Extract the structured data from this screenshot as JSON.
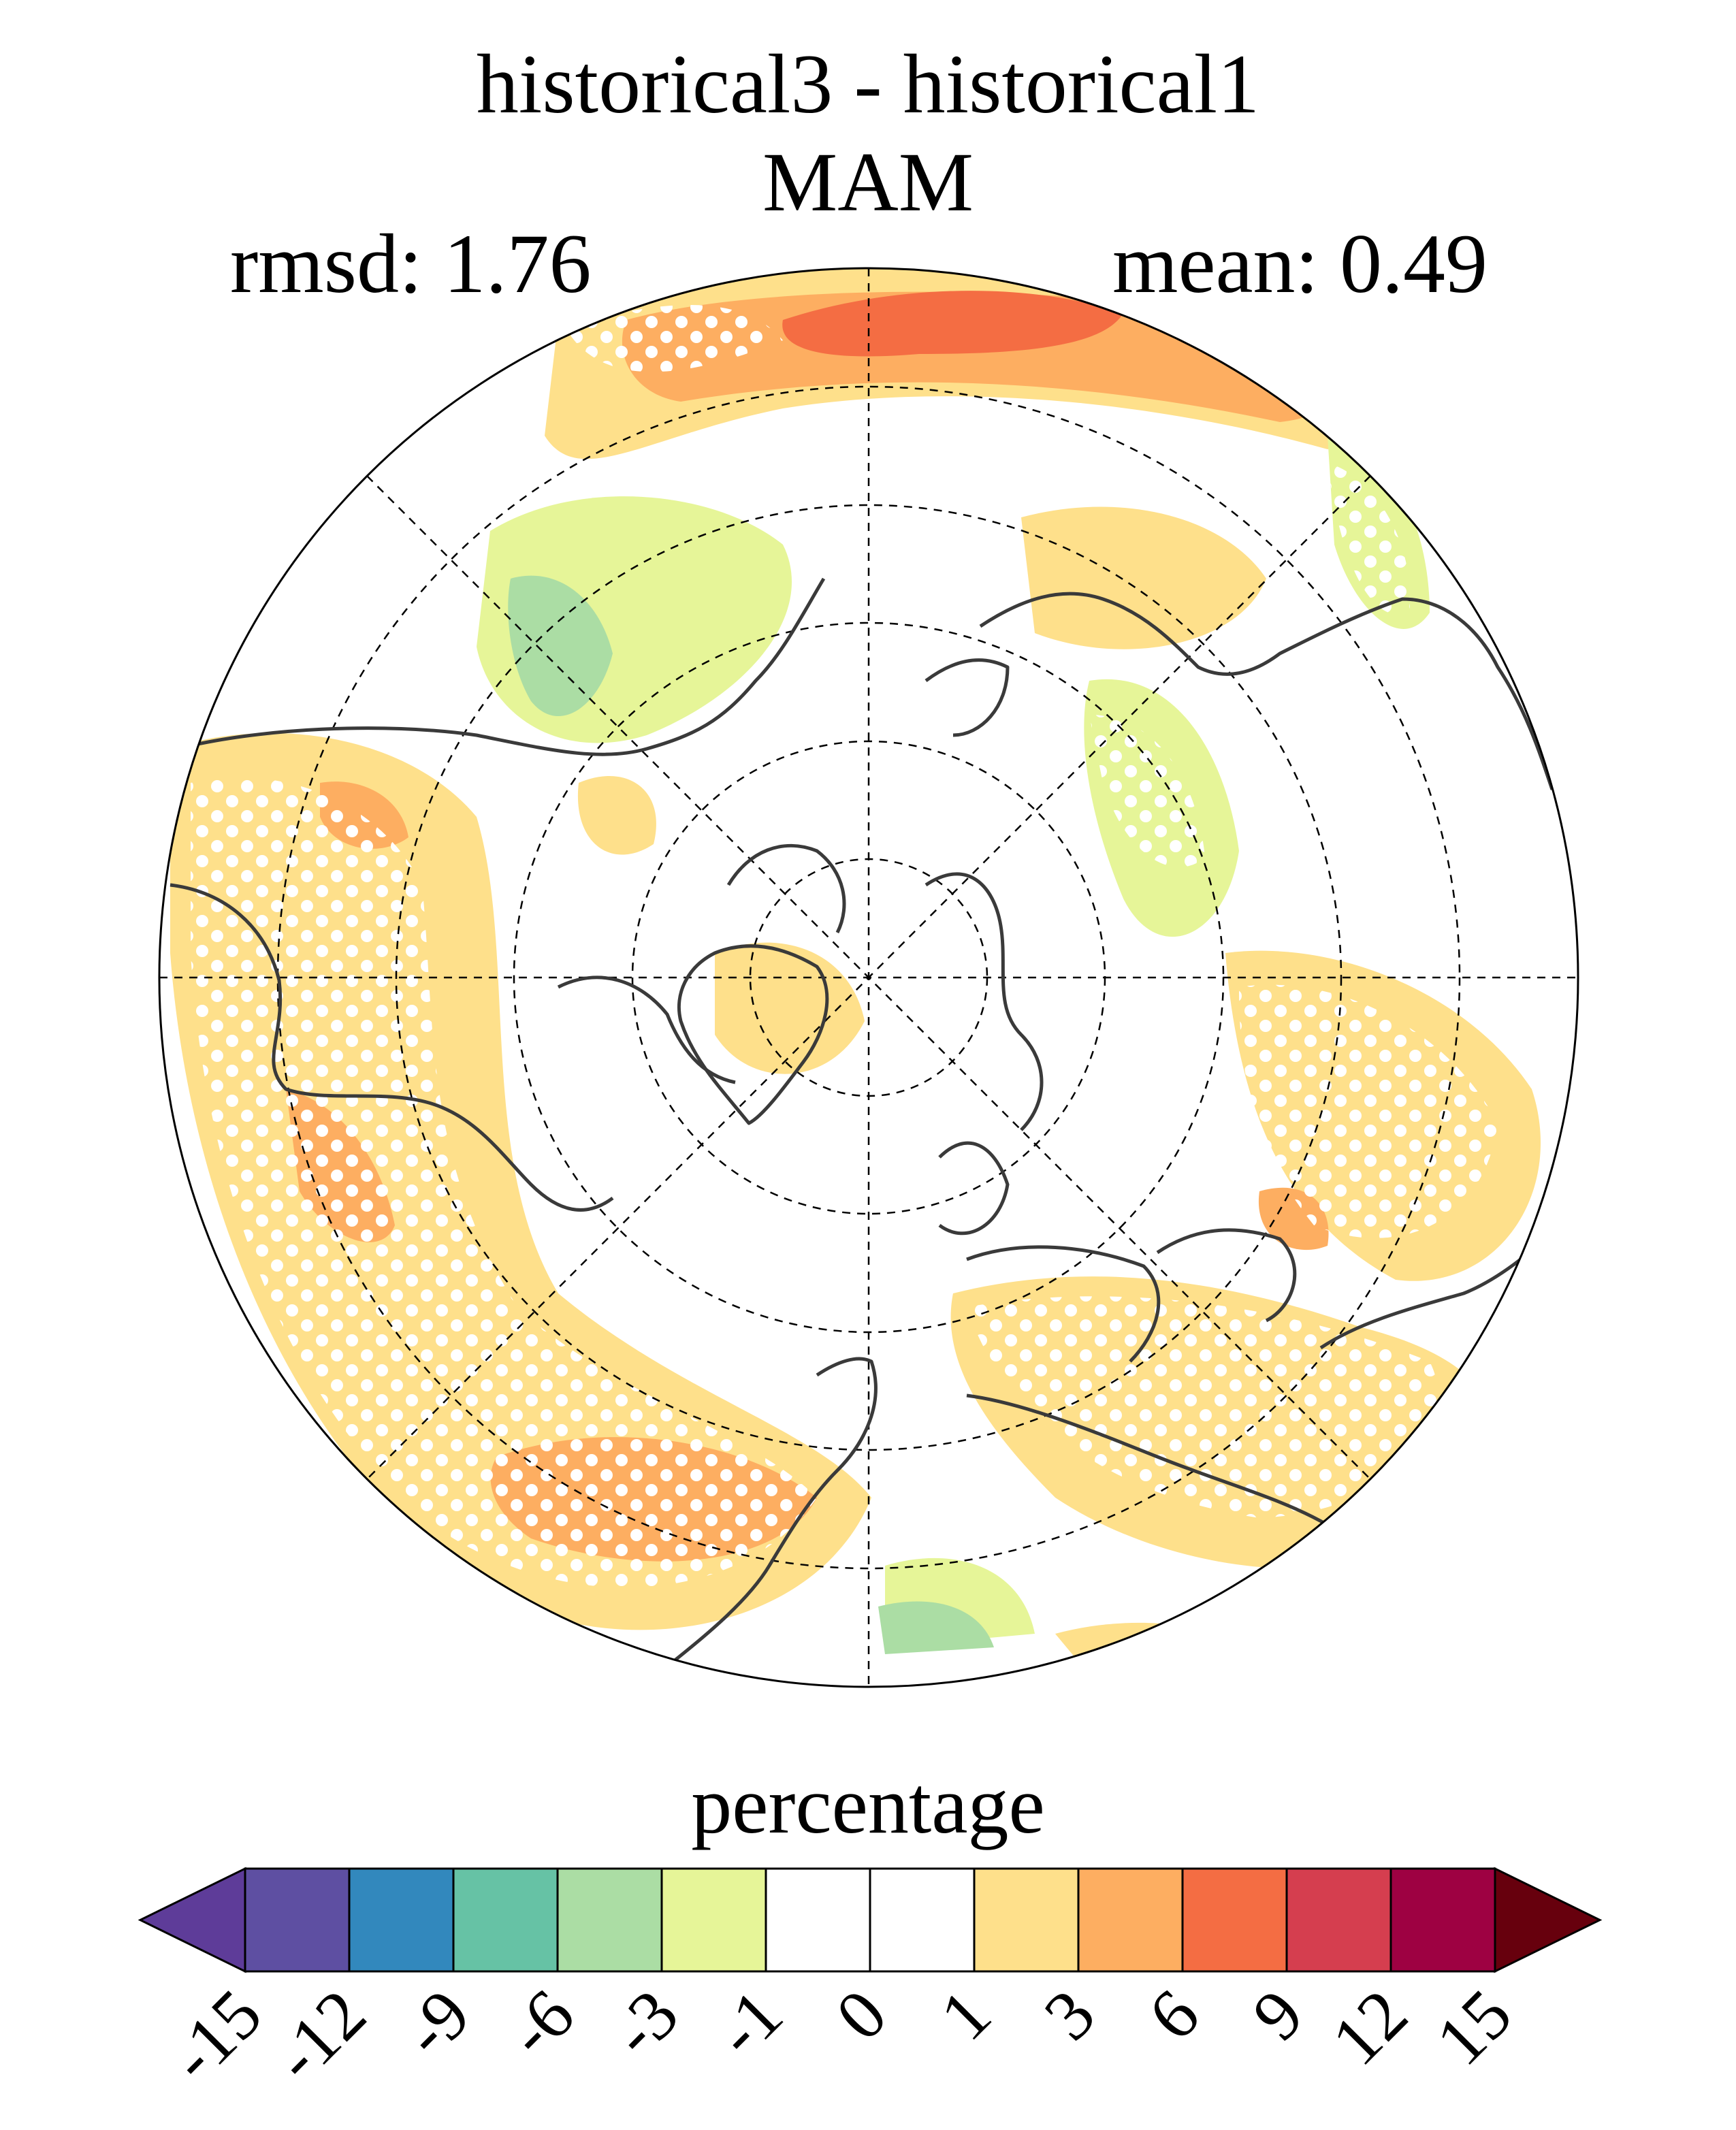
{
  "title": {
    "line1": "historical3 - historical1",
    "line2": "MAM"
  },
  "stats": {
    "rmsd": "rmsd: 1.76",
    "mean": "mean: 0.49"
  },
  "map": {
    "projection": "north-polar-stereographic",
    "graticule": "dashed",
    "stippling": "white-dots"
  },
  "colorbar": {
    "label": "percentage",
    "ticks": [
      "-15",
      "-12",
      "-9",
      "-6",
      "-3",
      "-1",
      "0",
      "1",
      "3",
      "6",
      "9",
      "12",
      "15"
    ],
    "under_color": "#5e3c99",
    "over_color": "#67000d",
    "colors": [
      "#5e4fa2",
      "#3288bd",
      "#66c2a5",
      "#abdda4",
      "#e6f598",
      "#ffffff",
      "#ffffff",
      "#fee08b",
      "#fdae61",
      "#f46d43",
      "#d53e4f",
      "#9e0142"
    ]
  }
}
